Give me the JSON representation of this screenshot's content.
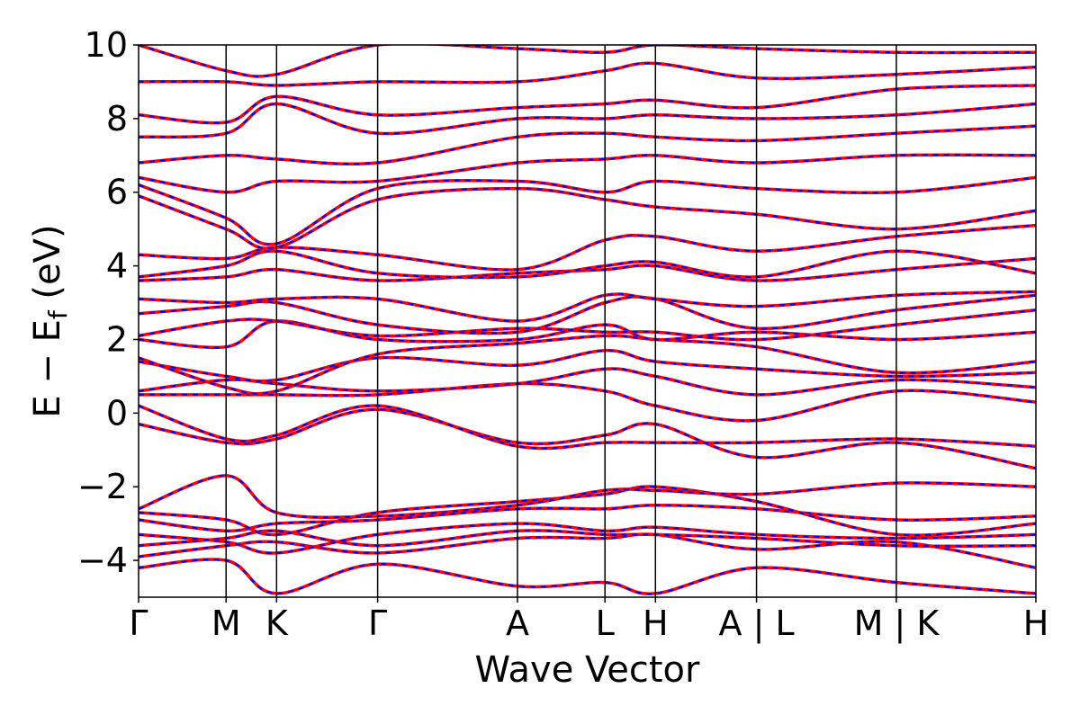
{
  "chart_data": {
    "type": "line",
    "title": "",
    "xlabel": "Wave Vector",
    "ylabel": "E − E",
    "ylabel_sub": "f",
    "ylabel_unit": " (eV)",
    "ylim": [
      -5,
      10
    ],
    "yticks": [
      {
        "value": 10,
        "label": "10"
      },
      {
        "value": 8,
        "label": "8"
      },
      {
        "value": 6,
        "label": "6"
      },
      {
        "value": 4,
        "label": "4"
      },
      {
        "value": 2,
        "label": "2"
      },
      {
        "value": 0,
        "label": "0"
      },
      {
        "value": -2,
        "label": "−2"
      },
      {
        "value": -4,
        "label": "−4"
      }
    ],
    "xlim": [
      0,
      10.255
    ],
    "kpoints": [
      {
        "position": 0.0,
        "label": "Γ"
      },
      {
        "position": 1.0,
        "label": "M"
      },
      {
        "position": 1.577,
        "label": "K"
      },
      {
        "position": 2.732,
        "label": "Γ"
      },
      {
        "position": 4.33,
        "label": "A"
      },
      {
        "position": 5.33,
        "label": "L"
      },
      {
        "position": 5.907,
        "label": "H"
      },
      {
        "position": 7.062,
        "label": "A | L"
      },
      {
        "position": 8.66,
        "label": "M | K"
      },
      {
        "position": 10.255,
        "label": "H"
      }
    ],
    "series": [
      {
        "style": "solid",
        "color": "#ff0000"
      },
      {
        "style": "dashed",
        "color": "#0000ff"
      }
    ],
    "bands": [
      {
        "x": [
          0,
          1.0,
          1.577,
          2.732,
          4.33,
          5.33,
          5.907,
          7.062,
          8.66,
          10.255
        ],
        "y": [
          -4.2,
          -4.0,
          -4.9,
          -4.1,
          -4.7,
          -4.6,
          -4.9,
          -4.2,
          -4.6,
          -4.9
        ]
      },
      {
        "x": [
          0,
          1.0,
          1.577,
          2.732,
          4.33,
          5.33,
          5.907,
          7.062,
          8.66,
          10.255
        ],
        "y": [
          -3.9,
          -3.6,
          -3.5,
          -3.8,
          -3.4,
          -3.4,
          -3.3,
          -3.7,
          -3.5,
          -4.2
        ]
      },
      {
        "x": [
          0,
          1.0,
          1.577,
          2.732,
          4.33,
          5.33,
          5.907,
          7.062,
          8.66,
          10.255
        ],
        "y": [
          -3.6,
          -3.4,
          -3.2,
          -3.6,
          -3.2,
          -3.3,
          -3.3,
          -3.4,
          -3.6,
          -3.6
        ]
      },
      {
        "x": [
          0,
          1.0,
          1.577,
          2.732,
          4.33,
          5.33,
          5.907,
          7.062,
          8.66,
          10.255
        ],
        "y": [
          -3.3,
          -3.5,
          -3.8,
          -3.3,
          -3.0,
          -3.2,
          -3.1,
          -3.3,
          -3.4,
          -3.3
        ]
      },
      {
        "x": [
          0,
          1.0,
          1.577,
          2.732,
          4.33,
          5.33,
          5.907,
          7.062,
          8.66,
          10.255
        ],
        "y": [
          -2.9,
          -3.2,
          -3.0,
          -2.9,
          -2.6,
          -2.6,
          -2.5,
          -2.6,
          -2.9,
          -2.8
        ]
      },
      {
        "x": [
          0,
          1.0,
          1.577,
          2.732,
          4.33,
          5.33,
          5.907,
          7.062,
          8.66,
          10.255
        ],
        "y": [
          -2.7,
          -2.9,
          -3.3,
          -2.7,
          -2.4,
          -2.2,
          -2.0,
          -2.4,
          -3.3,
          -3.0
        ]
      },
      {
        "x": [
          0,
          1.0,
          1.577,
          2.732,
          4.33,
          5.33,
          5.907,
          7.062,
          8.66,
          10.255
        ],
        "y": [
          -2.6,
          -1.7,
          -2.7,
          -2.8,
          -2.5,
          -2.1,
          -2.1,
          -2.2,
          -1.9,
          -2.0
        ]
      },
      {
        "x": [
          0,
          1.0,
          1.577,
          2.732,
          4.33,
          5.33,
          5.907,
          7.062,
          8.66,
          10.255
        ],
        "y": [
          -0.3,
          -0.8,
          -0.7,
          0.1,
          -0.8,
          -0.6,
          -0.3,
          -1.2,
          -0.8,
          -1.5
        ]
      },
      {
        "x": [
          0,
          1.0,
          1.577,
          2.732,
          4.33,
          5.33,
          5.907,
          7.062,
          8.66,
          10.255
        ],
        "y": [
          0.2,
          -0.7,
          -0.6,
          0.2,
          -0.9,
          -0.8,
          -0.8,
          -0.8,
          -0.7,
          -0.9
        ]
      },
      {
        "x": [
          0,
          1.0,
          1.577,
          2.732,
          4.33,
          5.33,
          5.907,
          7.062,
          8.66,
          10.255
        ],
        "y": [
          0.5,
          0.5,
          0.5,
          0.5,
          0.8,
          0.6,
          0.2,
          -0.2,
          0.6,
          0.3
        ]
      },
      {
        "x": [
          0,
          1.0,
          1.577,
          2.732,
          4.33,
          5.33,
          5.907,
          7.062,
          8.66,
          10.255
        ],
        "y": [
          0.6,
          0.9,
          0.8,
          0.6,
          0.8,
          1.2,
          1.0,
          0.5,
          0.9,
          0.7
        ]
      },
      {
        "x": [
          0,
          1.0,
          1.577,
          2.732,
          4.33,
          5.33,
          5.907,
          7.062,
          8.66,
          10.255
        ],
        "y": [
          1.4,
          1.0,
          0.9,
          1.5,
          1.3,
          1.7,
          1.4,
          1.2,
          1.0,
          1.1
        ]
      },
      {
        "x": [
          0,
          1.0,
          1.577,
          2.732,
          4.33,
          5.33,
          5.907,
          7.062,
          8.66,
          10.255
        ],
        "y": [
          1.5,
          0.7,
          0.6,
          1.6,
          1.9,
          2.1,
          2.0,
          1.8,
          1.1,
          1.4
        ]
      },
      {
        "x": [
          0,
          1.0,
          1.577,
          2.732,
          4.33,
          5.33,
          5.907,
          7.062,
          8.66,
          10.255
        ],
        "y": [
          2.0,
          1.8,
          2.5,
          2.0,
          2.0,
          2.4,
          2.0,
          2.2,
          2.0,
          2.2
        ]
      },
      {
        "x": [
          0,
          1.0,
          1.577,
          2.732,
          4.33,
          5.33,
          5.907,
          7.062,
          8.66,
          10.255
        ],
        "y": [
          2.1,
          2.5,
          2.5,
          2.1,
          2.3,
          2.2,
          2.2,
          2.0,
          2.4,
          2.8
        ]
      },
      {
        "x": [
          0,
          1.0,
          1.577,
          2.732,
          4.33,
          5.33,
          5.907,
          7.062,
          8.66,
          10.255
        ],
        "y": [
          2.7,
          2.9,
          3.0,
          2.4,
          2.2,
          3.0,
          3.1,
          2.3,
          2.8,
          3.2
        ]
      },
      {
        "x": [
          0,
          1.0,
          1.577,
          2.732,
          4.33,
          5.33,
          5.907,
          7.062,
          8.66,
          10.255
        ],
        "y": [
          3.1,
          3.0,
          3.1,
          3.1,
          2.5,
          3.2,
          3.1,
          2.9,
          3.2,
          3.3
        ]
      },
      {
        "x": [
          0,
          1.0,
          1.577,
          2.732,
          4.33,
          5.33,
          5.907,
          7.062,
          8.66,
          10.255
        ],
        "y": [
          3.6,
          3.7,
          3.9,
          3.6,
          3.8,
          3.9,
          4.0,
          3.6,
          3.9,
          4.2
        ]
      },
      {
        "x": [
          0,
          1.0,
          1.577,
          2.732,
          4.33,
          5.33,
          5.907,
          7.062,
          8.66,
          10.255
        ],
        "y": [
          3.7,
          4.0,
          4.4,
          3.8,
          3.7,
          4.0,
          4.1,
          3.7,
          4.4,
          3.8
        ]
      },
      {
        "x": [
          0,
          1.0,
          1.577,
          2.732,
          4.33,
          5.33,
          5.907,
          7.062,
          8.66,
          10.255
        ],
        "y": [
          4.3,
          4.2,
          4.5,
          4.3,
          3.9,
          4.7,
          4.8,
          4.4,
          4.8,
          5.1
        ]
      },
      {
        "x": [
          0,
          1.0,
          1.577,
          2.732,
          4.33,
          5.33,
          5.907,
          7.062,
          8.66,
          10.255
        ],
        "y": [
          5.9,
          5.0,
          4.5,
          5.8,
          6.1,
          5.8,
          5.6,
          5.4,
          5.0,
          5.5
        ]
      },
      {
        "x": [
          0,
          1.0,
          1.577,
          2.732,
          4.33,
          5.33,
          5.907,
          7.062,
          8.66,
          10.255
        ],
        "y": [
          6.2,
          5.3,
          4.6,
          6.1,
          6.3,
          6.0,
          6.3,
          6.1,
          6.0,
          6.4
        ]
      },
      {
        "x": [
          0,
          1.0,
          1.577,
          2.732,
          4.33,
          5.33,
          5.907,
          7.062,
          8.66,
          10.255
        ],
        "y": [
          6.4,
          6.0,
          6.3,
          6.3,
          6.8,
          6.9,
          7.0,
          6.8,
          7.0,
          7.0
        ]
      },
      {
        "x": [
          0,
          1.0,
          1.577,
          2.732,
          4.33,
          5.33,
          5.907,
          7.062,
          8.66,
          10.255
        ],
        "y": [
          6.8,
          7.0,
          6.9,
          6.8,
          7.5,
          7.6,
          7.5,
          7.4,
          7.6,
          7.8
        ]
      },
      {
        "x": [
          0,
          1.0,
          1.577,
          2.732,
          4.33,
          5.33,
          5.907,
          7.062,
          8.66,
          10.255
        ],
        "y": [
          7.5,
          7.6,
          8.4,
          7.6,
          8.0,
          8.0,
          8.1,
          8.0,
          8.1,
          8.4
        ]
      },
      {
        "x": [
          0,
          1.0,
          1.577,
          2.732,
          4.33,
          5.33,
          5.907,
          7.062,
          8.66,
          10.255
        ],
        "y": [
          8.1,
          7.9,
          8.6,
          8.1,
          8.3,
          8.4,
          8.5,
          8.3,
          8.8,
          8.9
        ]
      },
      {
        "x": [
          0,
          1.0,
          1.577,
          2.732,
          4.33,
          5.33,
          5.907,
          7.062,
          8.66,
          10.255
        ],
        "y": [
          9.0,
          9.0,
          8.9,
          9.0,
          9.0,
          9.3,
          9.5,
          9.1,
          9.2,
          9.4
        ]
      },
      {
        "x": [
          0,
          1.0,
          1.577,
          2.732,
          4.33,
          5.33,
          5.907,
          7.062,
          8.66,
          10.255
        ],
        "y": [
          10.0,
          9.3,
          9.2,
          10.0,
          9.9,
          9.8,
          10.0,
          9.9,
          9.8,
          9.8
        ]
      }
    ]
  }
}
